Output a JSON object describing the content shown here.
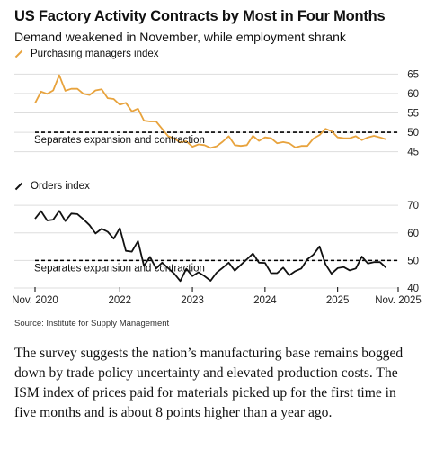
{
  "header": {
    "title": "US Factory Activity Contracts by Most in Four Months",
    "subtitle": "Demand weakened in November, while employment shrank"
  },
  "source": "Source: Institute for Supply Management",
  "body_text": "The survey suggests the nation’s manufacturing base remains bogged down by trade policy uncertainty and elevated production costs. The ISM index of prices paid for materials picked up for the first time in five months and is about 8 points higher than a year ago.",
  "colors": {
    "pmi": "#e8a33d",
    "orders": "#111111",
    "grid": "#dddddd",
    "threshold": "#000000"
  },
  "x_tick_labels": [
    "Nov. 2020",
    "2022",
    "2023",
    "2024",
    "2025",
    "Nov. 2025"
  ],
  "chart_data": [
    {
      "type": "line",
      "series": [
        {
          "name": "Purchasing managers index",
          "values": [
            57.5,
            60.5,
            59.9,
            60.8,
            64.7,
            60.7,
            61.2,
            61.2,
            59.9,
            59.6,
            60.8,
            61.1,
            58.8,
            58.6,
            57.1,
            57.6,
            55.4,
            56.1,
            53.0,
            52.8,
            52.8,
            50.9,
            49.0,
            48.4,
            47.4,
            47.7,
            46.3,
            46.9,
            46.7,
            46.0,
            46.4,
            47.6,
            49.0,
            46.7,
            46.5,
            46.7,
            49.1,
            47.8,
            48.7,
            48.5,
            47.2,
            47.5,
            47.2,
            46.1,
            46.5,
            46.5,
            48.4,
            49.3,
            50.9,
            50.3,
            48.7,
            48.5,
            48.5,
            49.0,
            48.0,
            48.7,
            49.1,
            48.7,
            48.2
          ],
          "color": "#e8a33d"
        }
      ],
      "x_start": "2020-11",
      "x_end": "2025-11",
      "x_ticks": [
        "2020-11",
        "2022-01",
        "2023-01",
        "2024-01",
        "2025-01",
        "2025-11"
      ],
      "yticks": [
        45,
        50,
        55,
        60,
        65
      ],
      "ylim": [
        44,
        66
      ],
      "reference_line": {
        "value": 50,
        "label": "Separates expansion and contraction"
      },
      "grid": true
    },
    {
      "type": "line",
      "series": [
        {
          "name": "Orders index",
          "values": [
            65.1,
            67.9,
            64.5,
            64.8,
            68.0,
            64.3,
            67.0,
            66.8,
            64.9,
            62.8,
            59.8,
            61.5,
            60.4,
            57.9,
            61.7,
            53.5,
            53.2,
            57.0,
            48.0,
            51.3,
            47.1,
            49.2,
            47.2,
            45.2,
            42.5,
            47.0,
            44.3,
            45.7,
            44.3,
            42.6,
            45.6,
            47.3,
            49.2,
            46.3,
            48.4,
            50.4,
            52.5,
            49.2,
            49.1,
            45.4,
            45.4,
            47.4,
            44.6,
            46.1,
            47.1,
            50.4,
            52.1,
            55.1,
            48.6,
            45.2,
            47.2,
            47.6,
            46.4,
            47.1,
            51.4,
            48.9,
            49.4,
            49.4,
            47.4
          ],
          "color": "#111111"
        }
      ],
      "x_start": "2020-11",
      "x_end": "2025-11",
      "x_ticks": [
        "2020-11",
        "2022-01",
        "2023-01",
        "2024-01",
        "2025-01",
        "2025-11"
      ],
      "yticks": [
        40,
        50,
        60,
        70
      ],
      "ylim": [
        40,
        72
      ],
      "reference_line": {
        "value": 50,
        "label": "Separates expansion and contraction"
      },
      "grid": true
    }
  ]
}
